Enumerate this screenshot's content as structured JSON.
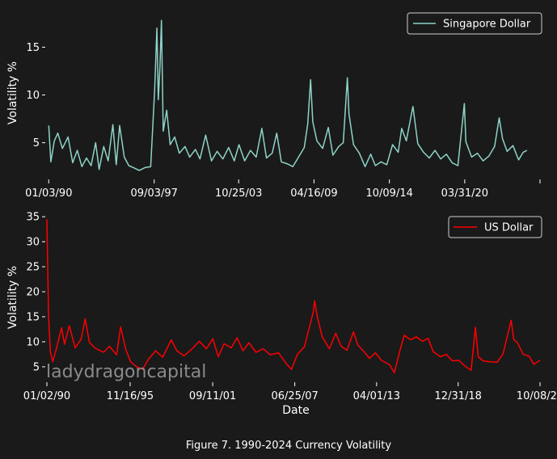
{
  "caption": "Figure 7. 1990-2024 Currency Volatility",
  "watermark": "ladydragoncapital",
  "background_color": "#1a1a1a",
  "chart_data": [
    {
      "type": "line",
      "xlabel": "",
      "ylabel": "Volatility %",
      "ylim": [
        1.5,
        18.5
      ],
      "y_ticks": [
        5,
        10,
        15
      ],
      "x_tick_labels": [
        "01/03/90",
        "09/03/97",
        "10/25/03",
        "04/16/09",
        "10/09/14",
        "03/31/20",
        ""
      ],
      "x_tick_dates": [
        "1990-01-03",
        "1997-09-03",
        "2003-10-25",
        "2009-04-16",
        "2014-10-09",
        "2020-03-31",
        "2025-09-20"
      ],
      "xlim": [
        "1989-11-15",
        "2025-09-20"
      ],
      "grid": false,
      "legend": "top-right",
      "series": [
        {
          "name": "Singapore Dollar",
          "color": "#8dd3c7",
          "points": [
            [
              "1990-01-03",
              6.8
            ],
            [
              "1990-03-01",
              3.0
            ],
            [
              "1990-06-01",
              5.2
            ],
            [
              "1990-09-01",
              6.0
            ],
            [
              "1991-01-01",
              4.4
            ],
            [
              "1991-06-01",
              5.6
            ],
            [
              "1991-10-01",
              2.9
            ],
            [
              "1992-02-01",
              4.2
            ],
            [
              "1992-06-01",
              2.5
            ],
            [
              "1992-10-01",
              3.4
            ],
            [
              "1993-02-01",
              2.6
            ],
            [
              "1993-06-01",
              5.0
            ],
            [
              "1993-09-01",
              2.2
            ],
            [
              "1994-01-01",
              4.6
            ],
            [
              "1994-05-01",
              3.1
            ],
            [
              "1994-09-01",
              6.9
            ],
            [
              "1994-12-01",
              2.7
            ],
            [
              "1995-03-01",
              6.8
            ],
            [
              "1995-07-01",
              3.5
            ],
            [
              "1995-11-01",
              2.6
            ],
            [
              "1996-03-01",
              2.4
            ],
            [
              "1996-08-01",
              2.1
            ],
            [
              "1997-01-01",
              2.4
            ],
            [
              "1997-06-01",
              2.5
            ],
            [
              "1997-09-15",
              10.5
            ],
            [
              "1997-11-15",
              17.0
            ],
            [
              "1997-12-20",
              9.5
            ],
            [
              "1998-02-01",
              12.8
            ],
            [
              "1998-03-15",
              17.8
            ],
            [
              "1998-05-01",
              6.2
            ],
            [
              "1998-08-01",
              8.4
            ],
            [
              "1998-11-01",
              4.8
            ],
            [
              "1999-03-01",
              5.6
            ],
            [
              "1999-07-01",
              3.9
            ],
            [
              "1999-12-01",
              4.6
            ],
            [
              "2000-04-01",
              3.5
            ],
            [
              "2000-09-01",
              4.3
            ],
            [
              "2001-01-01",
              3.3
            ],
            [
              "2001-06-01",
              5.8
            ],
            [
              "2001-11-01",
              3.1
            ],
            [
              "2002-04-01",
              4.1
            ],
            [
              "2002-09-01",
              3.3
            ],
            [
              "2003-02-01",
              4.5
            ],
            [
              "2003-07-01",
              3.1
            ],
            [
              "2003-11-01",
              4.8
            ],
            [
              "2004-04-01",
              3.1
            ],
            [
              "2004-09-01",
              4.2
            ],
            [
              "2005-02-01",
              3.5
            ],
            [
              "2005-07-01",
              6.5
            ],
            [
              "2005-11-01",
              3.4
            ],
            [
              "2006-04-01",
              3.9
            ],
            [
              "2006-08-01",
              6.0
            ],
            [
              "2006-12-01",
              3.0
            ],
            [
              "2007-05-01",
              2.8
            ],
            [
              "2007-10-01",
              2.5
            ],
            [
              "2008-03-01",
              3.5
            ],
            [
              "2008-08-01",
              4.5
            ],
            [
              "2008-11-01",
              7.0
            ],
            [
              "2009-01-15",
              11.6
            ],
            [
              "2009-03-15",
              7.2
            ],
            [
              "2009-07-01",
              5.2
            ],
            [
              "2009-12-01",
              4.4
            ],
            [
              "2010-05-01",
              6.6
            ],
            [
              "2010-09-01",
              3.7
            ],
            [
              "2011-02-01",
              4.6
            ],
            [
              "2011-06-01",
              5.0
            ],
            [
              "2011-09-20",
              11.8
            ],
            [
              "2011-11-01",
              8.0
            ],
            [
              "2012-03-01",
              4.8
            ],
            [
              "2012-08-01",
              3.9
            ],
            [
              "2013-01-01",
              2.5
            ],
            [
              "2013-06-01",
              3.8
            ],
            [
              "2013-10-01",
              2.6
            ],
            [
              "2014-03-01",
              3.0
            ],
            [
              "2014-08-01",
              2.7
            ],
            [
              "2015-01-01",
              4.8
            ],
            [
              "2015-06-01",
              4.0
            ],
            [
              "2015-09-01",
              6.5
            ],
            [
              "2016-01-01",
              5.2
            ],
            [
              "2016-06-25",
              8.8
            ],
            [
              "2016-11-01",
              4.9
            ],
            [
              "2017-04-01",
              4.0
            ],
            [
              "2017-09-01",
              3.4
            ],
            [
              "2018-02-01",
              4.2
            ],
            [
              "2018-07-01",
              3.3
            ],
            [
              "2018-12-01",
              3.8
            ],
            [
              "2019-05-01",
              2.9
            ],
            [
              "2019-10-01",
              2.6
            ],
            [
              "2020-03-20",
              9.1
            ],
            [
              "2020-05-01",
              5.1
            ],
            [
              "2020-10-01",
              3.5
            ],
            [
              "2021-03-01",
              3.9
            ],
            [
              "2021-08-01",
              3.1
            ],
            [
              "2022-01-01",
              3.6
            ],
            [
              "2022-06-01",
              4.6
            ],
            [
              "2022-10-01",
              7.6
            ],
            [
              "2023-01-01",
              5.4
            ],
            [
              "2023-05-01",
              4.1
            ],
            [
              "2023-10-01",
              4.7
            ],
            [
              "2024-03-01",
              3.2
            ],
            [
              "2024-07-01",
              4.0
            ],
            [
              "2024-10-08",
              4.2
            ]
          ]
        }
      ]
    },
    {
      "type": "line",
      "xlabel": "Date",
      "ylabel": "Volatility %",
      "ylim": [
        2.4,
        36.0
      ],
      "y_ticks": [
        5,
        10,
        15,
        20,
        25,
        30,
        35
      ],
      "x_tick_labels": [
        "01/02/90",
        "11/16/95",
        "09/11/01",
        "06/25/07",
        "04/01/13",
        "12/31/18",
        "10/08/24"
      ],
      "x_tick_dates": [
        "1990-01-02",
        "1995-11-16",
        "2001-09-11",
        "2007-06-25",
        "2013-04-01",
        "2018-12-31",
        "2024-10-08"
      ],
      "xlim": [
        "1990-01-02",
        "2024-10-08"
      ],
      "grid": false,
      "legend": "top-right",
      "series": [
        {
          "name": "US Dollar",
          "color": "#ff0000",
          "points": [
            [
              "1990-01-02",
              34.5
            ],
            [
              "1990-02-15",
              15.0
            ],
            [
              "1990-04-01",
              8.0
            ],
            [
              "1990-06-01",
              6.0
            ],
            [
              "1990-09-01",
              8.5
            ],
            [
              "1991-01-15",
              12.8
            ],
            [
              "1991-04-01",
              9.5
            ],
            [
              "1991-08-01",
              13.2
            ],
            [
              "1992-01-01",
              8.8
            ],
            [
              "1992-06-01",
              10.5
            ],
            [
              "1992-09-15",
              14.6
            ],
            [
              "1993-01-01",
              9.9
            ],
            [
              "1993-06-01",
              8.7
            ],
            [
              "1994-01-01",
              7.9
            ],
            [
              "1994-06-01",
              9.1
            ],
            [
              "1994-12-01",
              7.4
            ],
            [
              "1995-03-15",
              13.0
            ],
            [
              "1995-08-01",
              8.3
            ],
            [
              "1995-12-01",
              6.0
            ],
            [
              "1996-05-01",
              5.0
            ],
            [
              "1996-10-01",
              4.5
            ],
            [
              "1997-03-01",
              6.5
            ],
            [
              "1997-09-01",
              8.2
            ],
            [
              "1998-03-01",
              6.9
            ],
            [
              "1998-10-10",
              10.4
            ],
            [
              "1999-03-01",
              8.2
            ],
            [
              "1999-09-01",
              7.2
            ],
            [
              "2000-03-01",
              8.4
            ],
            [
              "2000-10-01",
              10.1
            ],
            [
              "2001-04-01",
              8.6
            ],
            [
              "2001-09-15",
              10.6
            ],
            [
              "2002-02-01",
              7.0
            ],
            [
              "2002-07-01",
              9.6
            ],
            [
              "2003-01-01",
              8.8
            ],
            [
              "2003-06-01",
              10.8
            ],
            [
              "2003-11-01",
              8.2
            ],
            [
              "2004-04-01",
              9.8
            ],
            [
              "2004-10-01",
              7.9
            ],
            [
              "2005-04-01",
              8.6
            ],
            [
              "2005-10-01",
              7.4
            ],
            [
              "2006-05-01",
              7.8
            ],
            [
              "2006-12-01",
              5.5
            ],
            [
              "2007-04-01",
              4.5
            ],
            [
              "2007-09-01",
              7.5
            ],
            [
              "2008-03-01",
              9.0
            ],
            [
              "2008-10-15",
              16.0
            ],
            [
              "2008-11-15",
              18.2
            ],
            [
              "2009-02-01",
              14.8
            ],
            [
              "2009-06-01",
              11.0
            ],
            [
              "2009-12-01",
              8.6
            ],
            [
              "2010-05-15",
              11.7
            ],
            [
              "2010-10-01",
              9.1
            ],
            [
              "2011-03-01",
              8.3
            ],
            [
              "2011-08-15",
              12.0
            ],
            [
              "2011-12-01",
              9.4
            ],
            [
              "2012-05-01",
              8.1
            ],
            [
              "2012-10-01",
              6.7
            ],
            [
              "2013-03-01",
              7.8
            ],
            [
              "2013-08-01",
              6.3
            ],
            [
              "2014-03-01",
              5.4
            ],
            [
              "2014-07-01",
              3.8
            ],
            [
              "2014-12-01",
              8.5
            ],
            [
              "2015-03-15",
              11.3
            ],
            [
              "2015-08-25",
              10.4
            ],
            [
              "2016-01-15",
              11.0
            ],
            [
              "2016-06-25",
              10.1
            ],
            [
              "2016-11-15",
              10.7
            ],
            [
              "2017-04-01",
              8.0
            ],
            [
              "2017-10-01",
              7.0
            ],
            [
              "2018-03-01",
              7.5
            ],
            [
              "2018-08-01",
              6.2
            ],
            [
              "2019-01-15",
              6.3
            ],
            [
              "2019-07-01",
              5.1
            ],
            [
              "2019-12-01",
              4.3
            ],
            [
              "2020-03-20",
              12.9
            ],
            [
              "2020-06-01",
              7.0
            ],
            [
              "2020-10-01",
              6.2
            ],
            [
              "2021-04-01",
              6.0
            ],
            [
              "2021-10-01",
              5.9
            ],
            [
              "2022-03-01",
              7.6
            ],
            [
              "2022-09-25",
              14.3
            ],
            [
              "2022-12-01",
              10.5
            ],
            [
              "2023-03-15",
              9.7
            ],
            [
              "2023-08-01",
              7.5
            ],
            [
              "2024-01-01",
              7.1
            ],
            [
              "2024-05-01",
              5.5
            ],
            [
              "2024-10-08",
              6.3
            ]
          ]
        }
      ]
    }
  ]
}
